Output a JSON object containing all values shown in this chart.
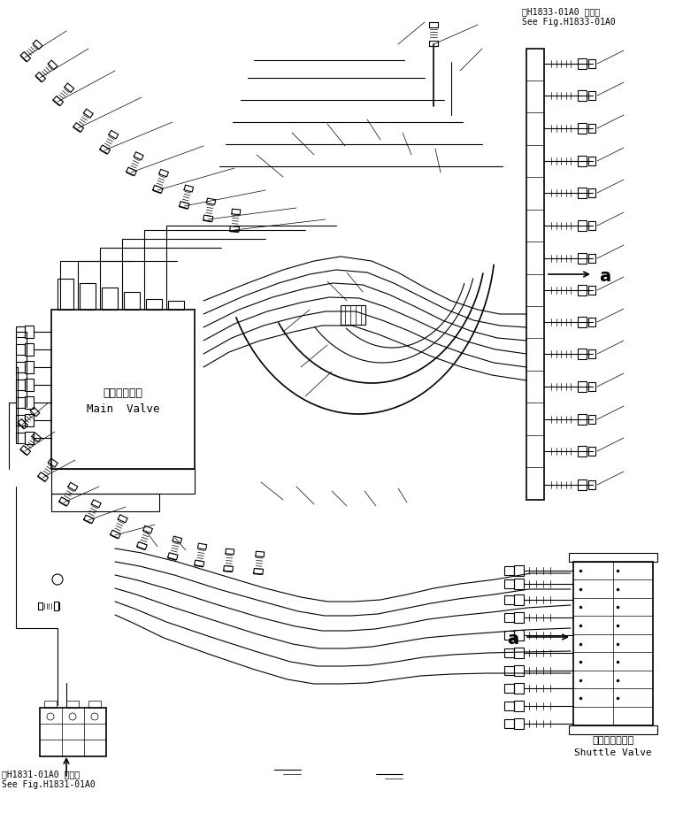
{
  "title_top_right_line1": "第H1833-01A0 図参照",
  "title_top_right_line2": "See Fig.H1833-01A0",
  "title_bottom_left_line1": "第H1831-01A0 図参照",
  "title_bottom_left_line2": "See Fig.H1831-01A0",
  "label_main_valve_jp": "メインバルブ",
  "label_main_valve_en": "Main  Valve",
  "label_shuttle_valve_jp": "シャトルバルブ",
  "label_shuttle_valve_en": "Shuttle Valve",
  "label_a": "a",
  "bg_color": "#ffffff",
  "line_color": "#000000",
  "font_size_small": 7,
  "font_size_medium": 9,
  "font_size_label": 8
}
